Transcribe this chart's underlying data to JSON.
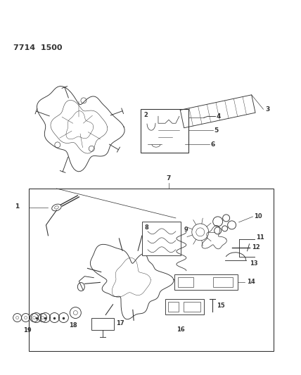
{
  "title": "7714  1500",
  "bg_color": "#ffffff",
  "fig_width": 4.28,
  "fig_height": 5.33,
  "dpi": 100,
  "line_color": "#333333",
  "lw": 0.65
}
